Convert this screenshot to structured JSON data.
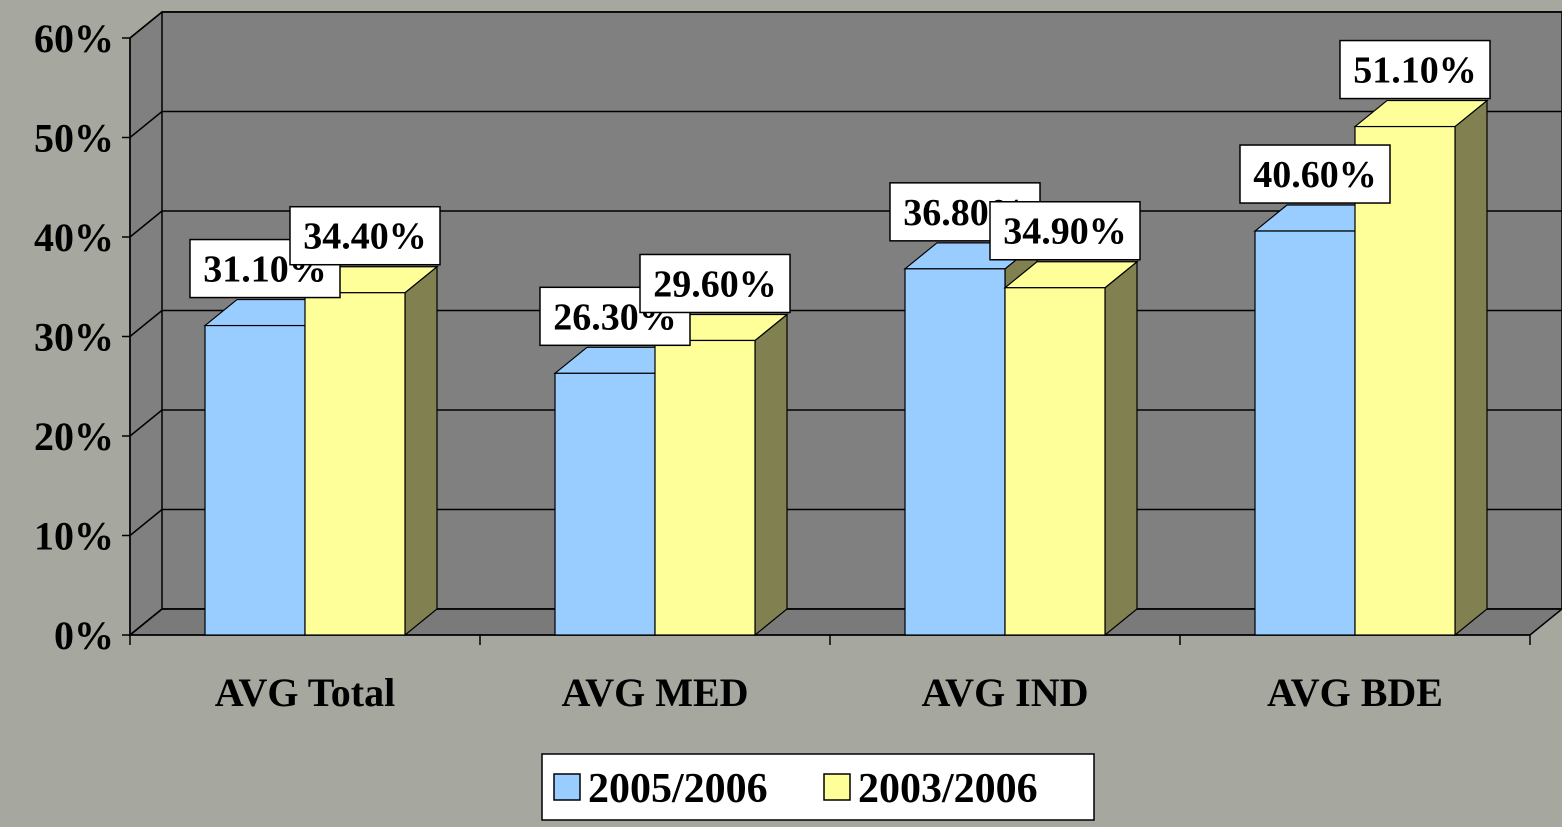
{
  "chart_data": {
    "type": "bar",
    "title": "",
    "xlabel": "",
    "ylabel": "",
    "categories": [
      "AVG Total",
      "AVG MED",
      "AVG IND",
      "AVG BDE"
    ],
    "series": [
      {
        "name": "2005/2006",
        "values": [
          31.1,
          26.3,
          36.8,
          40.6
        ],
        "labels": [
          "31.10%",
          "26.30%",
          "36.80%",
          "40.60%"
        ],
        "color": "#99ccff"
      },
      {
        "name": "2003/2006",
        "values": [
          34.4,
          29.6,
          34.9,
          51.1
        ],
        "labels": [
          "34.40%",
          "29.60%",
          "34.90%",
          "51.10%"
        ],
        "color": "#ffff99"
      }
    ],
    "ylim": [
      0,
      60
    ],
    "yticks": [
      "0%",
      "10%",
      "20%",
      "30%",
      "40%",
      "50%",
      "60%"
    ],
    "grid": true,
    "legend_position": "bottom",
    "style": "3d-clustered-column",
    "colors": {
      "background": "#a6a89f",
      "wall": "#808080",
      "floor": "#7a7a7a",
      "bar_side": "#808050"
    }
  }
}
